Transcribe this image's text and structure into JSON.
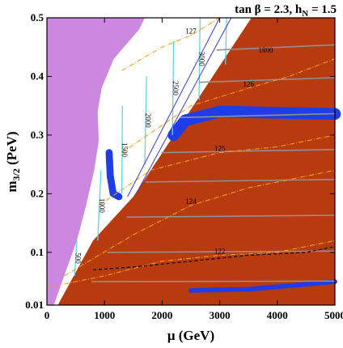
{
  "chart_data": {
    "type": "contour",
    "title": "tan β = 2.3, h",
    "title_sub": "N",
    "title_tail": " = 1.5",
    "xlabel": "μ  (GeV)",
    "ylabel_main": "m",
    "ylabel_sub": "3/2",
    "ylabel_tail": " (PeV)",
    "xlim": [
      0,
      5000
    ],
    "ylim": [
      0.01,
      0.5
    ],
    "xticks": [
      "0",
      "1000",
      "2000",
      "3000",
      "4000",
      "5000"
    ],
    "yticks": [
      "0.01",
      "0.1",
      "0.2",
      "0.3",
      "0.4",
      "0.5"
    ],
    "ytick_values": [
      0.01,
      0.1,
      0.2,
      0.3,
      0.4,
      0.5
    ],
    "grid": false,
    "colors": {
      "excluded_left": "#cc88e0",
      "excluded_right": "#b83a0f",
      "relic_band": "#1f3de6",
      "cyan_contours": "#5fd3e8",
      "grey_contours": "#909090",
      "orange_contours": "#f0a020",
      "black_dashed": "#000000",
      "blue_lines": "#3b3bd0"
    },
    "regions": [
      {
        "name": "purple excluded region",
        "color": "#cc88e0",
        "boundary": [
          [
            0,
            0.01
          ],
          [
            120,
            0.01
          ],
          [
            300,
            0.06
          ],
          [
            520,
            0.12
          ],
          [
            680,
            0.18
          ],
          [
            820,
            0.24
          ],
          [
            900,
            0.29
          ],
          [
            880,
            0.34
          ],
          [
            950,
            0.38
          ],
          [
            1160,
            0.43
          ],
          [
            1600,
            0.48
          ],
          [
            1700,
            0.5
          ],
          [
            0,
            0.5
          ]
        ]
      },
      {
        "name": "brown excluded region",
        "color": "#b83a0f",
        "boundary": [
          [
            200,
            0.01
          ],
          [
            5000,
            0.01
          ],
          [
            5000,
            0.5
          ],
          [
            3550,
            0.5
          ],
          [
            1500,
            0.195
          ],
          [
            800,
            0.12
          ],
          [
            200,
            0.012
          ]
        ]
      }
    ],
    "relic_bands": [
      {
        "name": "upper blue band",
        "points": [
          [
            2200,
            0.3
          ],
          [
            2400,
            0.325
          ],
          [
            3000,
            0.34
          ],
          [
            4000,
            0.338
          ],
          [
            5000,
            0.336
          ]
        ],
        "width": 0.02
      },
      {
        "name": "blue hook",
        "points": [
          [
            1080,
            0.27
          ],
          [
            1100,
            0.23
          ],
          [
            1150,
            0.2
          ],
          [
            1250,
            0.195
          ]
        ],
        "width": 0.012
      },
      {
        "name": "lower blue band",
        "points": [
          [
            2500,
            0.035
          ],
          [
            3500,
            0.037
          ],
          [
            4200,
            0.043
          ],
          [
            5000,
            0.05
          ]
        ],
        "width": 0.008
      }
    ],
    "cyan_contours": [
      {
        "label": "500",
        "points": [
          [
            480,
            0.06
          ],
          [
            520,
            0.12
          ]
        ]
      },
      {
        "label": "1000",
        "points": [
          [
            880,
            0.12
          ],
          [
            940,
            0.24
          ]
        ]
      },
      {
        "label": "1500",
        "points": [
          [
            1300,
            0.2
          ],
          [
            1310,
            0.35
          ]
        ]
      },
      {
        "label": "2000",
        "points": [
          [
            1700,
            0.25
          ],
          [
            1730,
            0.4
          ]
        ]
      },
      {
        "label": "2500",
        "points": [
          [
            2180,
            0.3
          ],
          [
            2200,
            0.46
          ]
        ]
      },
      {
        "label": "3000",
        "points": [
          [
            2640,
            0.36
          ],
          [
            2660,
            0.5
          ]
        ]
      },
      {
        "label": "",
        "points": [
          [
            3100,
            0.42
          ],
          [
            3120,
            0.5
          ]
        ]
      }
    ],
    "grey_contours": [
      {
        "label": "",
        "y": 0.05
      },
      {
        "label": "",
        "y": 0.1
      },
      {
        "label": "",
        "y": 0.16
      },
      {
        "label": "",
        "y": 0.22
      },
      {
        "label": "",
        "y": 0.27
      },
      {
        "label": "",
        "y": 0.33
      },
      {
        "label": "",
        "y": 0.39
      },
      {
        "label": "1800",
        "y": 0.445
      }
    ],
    "orange_contours": [
      {
        "label": "122",
        "points": [
          [
            0,
            0.04
          ],
          [
            1000,
            0.06
          ],
          [
            2000,
            0.085
          ],
          [
            3000,
            0.095
          ],
          [
            4000,
            0.1
          ],
          [
            5000,
            0.12
          ]
        ]
      },
      {
        "label": "124",
        "points": [
          [
            300,
            0.06
          ],
          [
            1500,
            0.13
          ],
          [
            2500,
            0.18
          ],
          [
            3500,
            0.21
          ],
          [
            5000,
            0.24
          ]
        ]
      },
      {
        "label": "125",
        "points": [
          [
            900,
            0.18
          ],
          [
            1800,
            0.24
          ],
          [
            3000,
            0.27
          ],
          [
            4000,
            0.28
          ],
          [
            5000,
            0.3
          ]
        ]
      },
      {
        "label": "126",
        "points": [
          [
            1300,
            0.27
          ],
          [
            2500,
            0.35
          ],
          [
            3500,
            0.38
          ],
          [
            4200,
            0.4
          ],
          [
            5000,
            0.43
          ]
        ]
      },
      {
        "label": "127",
        "points": [
          [
            1300,
            0.41
          ],
          [
            2000,
            0.45
          ],
          [
            2500,
            0.47
          ],
          [
            3000,
            0.5
          ]
        ]
      }
    ],
    "black_dashed": {
      "points": [
        [
          800,
          0.07
        ],
        [
          1500,
          0.075
        ],
        [
          2500,
          0.085
        ],
        [
          3500,
          0.095
        ],
        [
          4500,
          0.1
        ],
        [
          5000,
          0.11
        ]
      ]
    },
    "diagonal_lines": [
      {
        "points": [
          [
            1400,
            0.195
          ],
          [
            3000,
            0.5
          ]
        ]
      },
      {
        "points": [
          [
            1550,
            0.2
          ],
          [
            3200,
            0.5
          ]
        ]
      }
    ]
  }
}
